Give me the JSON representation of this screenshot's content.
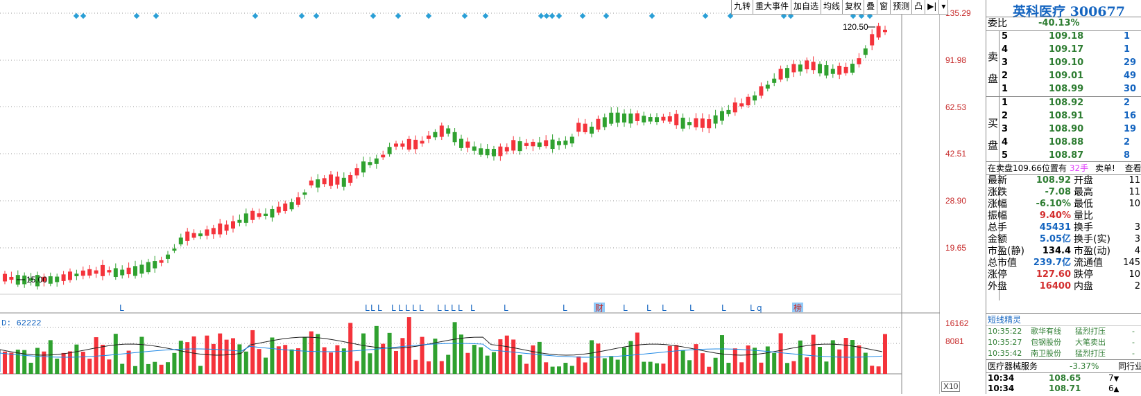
{
  "toolbar": {
    "items": [
      "九转",
      "重大事件",
      "加自选",
      "均线",
      "复权",
      "叠",
      "窗",
      "预测",
      "凸",
      "▶|",
      "▾"
    ]
  },
  "price_axis": {
    "labels": [
      "135.29",
      "91.98",
      "62.53",
      "42.51",
      "28.90",
      "19.65"
    ],
    "scale": "log"
  },
  "volume_axis": {
    "labels": [
      "16162",
      "8081"
    ],
    "multiplier": "X10"
  },
  "volume_indicator": {
    "label": "D: 62222"
  },
  "annotations": {
    "high_label": "120.50",
    "low_label": "15.00",
    "letter_markers": [
      "L",
      "L",
      "L",
      "L",
      "L",
      "L",
      "L",
      "L",
      "L",
      "L",
      "L",
      "L",
      "L",
      "L",
      "L",
      "L",
      "财",
      "L",
      "L",
      "L",
      "L",
      "L",
      "L",
      "q",
      "榜"
    ]
  },
  "panel": {
    "stock_name": "英科医疗",
    "stock_code": "300677",
    "committee_ratio_label": "委比",
    "committee_ratio_value": "-40.13%",
    "sell_label": "卖盘",
    "buy_label": "买盘",
    "sell_orders": [
      {
        "level": "5",
        "price": "109.18",
        "volume": "1"
      },
      {
        "level": "4",
        "price": "109.17",
        "volume": "1"
      },
      {
        "level": "3",
        "price": "109.10",
        "volume": "29"
      },
      {
        "level": "2",
        "price": "109.01",
        "volume": "49"
      },
      {
        "level": "1",
        "price": "108.99",
        "volume": "30"
      }
    ],
    "buy_orders": [
      {
        "level": "1",
        "price": "108.92",
        "volume": "2"
      },
      {
        "level": "2",
        "price": "108.91",
        "volume": "16"
      },
      {
        "level": "3",
        "price": "108.90",
        "volume": "19"
      },
      {
        "level": "4",
        "price": "108.88",
        "volume": "2"
      },
      {
        "level": "5",
        "price": "108.87",
        "volume": "8"
      }
    ],
    "notice_prefix": "在卖盘109.66位置有",
    "notice_qty": "32手",
    "notice_suffix": "卖单!",
    "notice_link": "查看",
    "stats_left": [
      {
        "label": "最新",
        "value": "108.92",
        "color": "green"
      },
      {
        "label": "涨跌",
        "value": "-7.08",
        "color": "green"
      },
      {
        "label": "涨幅",
        "value": "-6.10%",
        "color": "green"
      },
      {
        "label": "振幅",
        "value": "9.40%",
        "color": "red"
      },
      {
        "label": "总手",
        "value": "45431",
        "color": "blue"
      },
      {
        "label": "金额",
        "value": "5.05亿",
        "color": "blue"
      },
      {
        "label": "市盈(静)",
        "value": "134.4",
        "color": "black"
      },
      {
        "label": "总市值",
        "value": "239.7亿",
        "color": "blue"
      },
      {
        "label": "涨停",
        "value": "127.60",
        "color": "red"
      },
      {
        "label": "外盘",
        "value": "16400",
        "color": "red"
      }
    ],
    "stats_right": [
      {
        "label": "开盘",
        "value": "11"
      },
      {
        "label": "最高",
        "value": "11"
      },
      {
        "label": "最低",
        "value": "10"
      },
      {
        "label": "量比",
        "value": ""
      },
      {
        "label": "换手",
        "value": "3"
      },
      {
        "label": "换手(实)",
        "value": "3"
      },
      {
        "label": "市盈(动)",
        "value": "4"
      },
      {
        "label": "流通值",
        "value": "145"
      },
      {
        "label": "跌停",
        "value": "10"
      },
      {
        "label": "内盘",
        "value": "2"
      }
    ],
    "elf_title": "短线精灵",
    "elf_rows": [
      {
        "time": "10:35:22",
        "name": "歌华有线",
        "event": "猛烈打压",
        "tail": "-"
      },
      {
        "time": "10:35:27",
        "name": "包钢股份",
        "event": "大笔卖出",
        "tail": "-"
      },
      {
        "time": "10:35:42",
        "name": "南卫股份",
        "event": "猛烈打压",
        "tail": "-"
      }
    ],
    "sector_name": "医疗器械服务",
    "sector_change": "-3.37%",
    "sector_link": "同行业",
    "ticks": [
      {
        "time": "10:34",
        "price": "108.65",
        "vol": "7",
        "dir": "down"
      },
      {
        "time": "10:34",
        "price": "108.71",
        "vol": "6",
        "dir": "up"
      }
    ]
  },
  "colors": {
    "up": "#f4333b",
    "down": "#2fa12f",
    "marker": "#2a9fd6",
    "axis_text": "#c62828"
  }
}
